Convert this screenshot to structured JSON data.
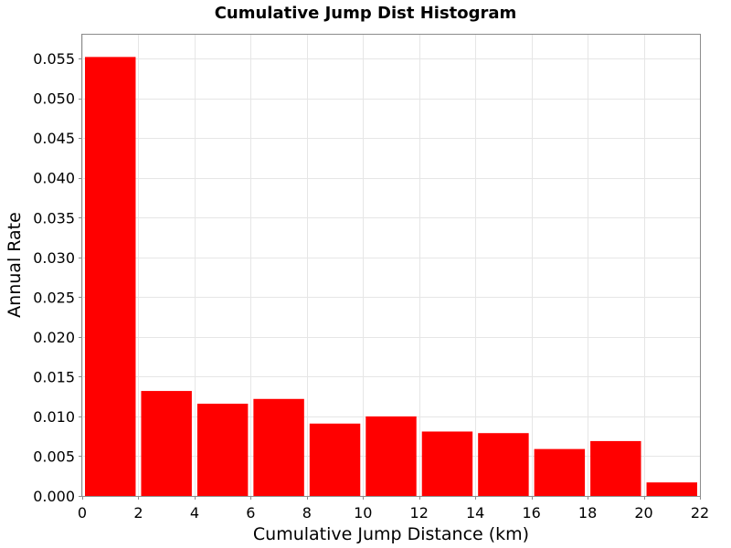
{
  "chart_data": {
    "type": "bar",
    "title": "Cumulative Jump Dist Histogram",
    "xlabel": "Cumulative Jump Distance (km)",
    "ylabel": "Annual Rate",
    "xlim": [
      0,
      22
    ],
    "ylim": [
      0,
      0.058
    ],
    "xticks": [
      "0",
      "2",
      "4",
      "6",
      "8",
      "10",
      "12",
      "14",
      "16",
      "18",
      "20",
      "22"
    ],
    "yticks": [
      "0.000",
      "0.005",
      "0.010",
      "0.015",
      "0.020",
      "0.025",
      "0.030",
      "0.035",
      "0.040",
      "0.045",
      "0.050",
      "0.055"
    ],
    "bin_width": 2,
    "bins": [
      {
        "x_start": 0,
        "value": 0.0552
      },
      {
        "x_start": 2,
        "value": 0.0132
      },
      {
        "x_start": 4,
        "value": 0.0116
      },
      {
        "x_start": 6,
        "value": 0.0122
      },
      {
        "x_start": 8,
        "value": 0.0091
      },
      {
        "x_start": 10,
        "value": 0.01
      },
      {
        "x_start": 12,
        "value": 0.0081
      },
      {
        "x_start": 14,
        "value": 0.0079
      },
      {
        "x_start": 16,
        "value": 0.0059
      },
      {
        "x_start": 18,
        "value": 0.0069
      },
      {
        "x_start": 20,
        "value": 0.0017
      }
    ],
    "grid": true,
    "bar_color": "#ff0000"
  }
}
